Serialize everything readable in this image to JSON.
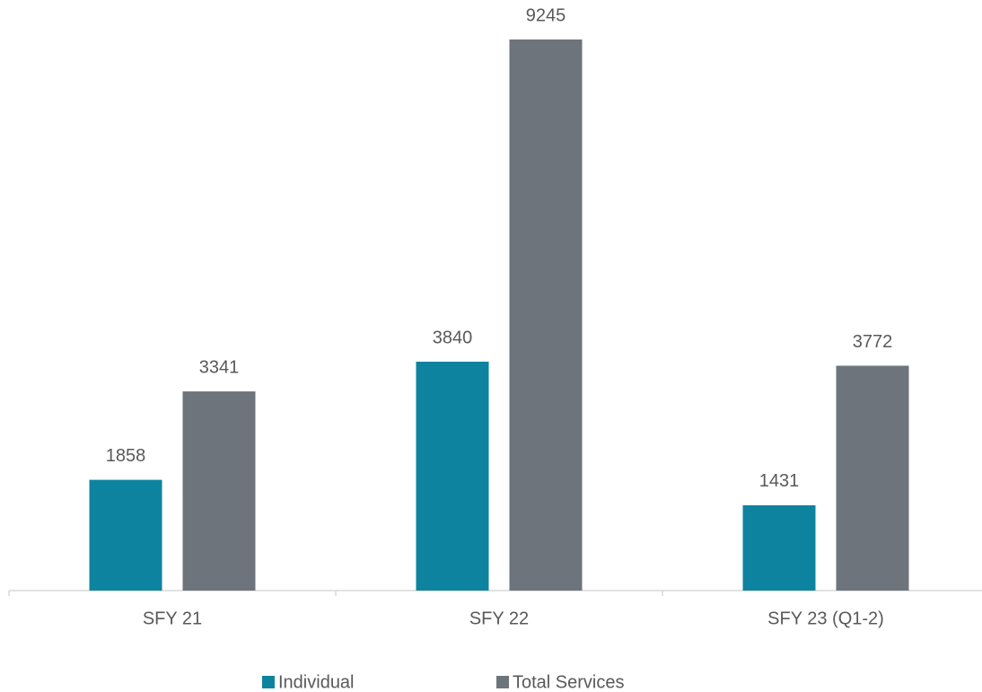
{
  "chart_data": {
    "type": "bar",
    "categories": [
      "SFY 21",
      "SFY 22",
      "SFY 23 (Q1-2)"
    ],
    "series": [
      {
        "name": "Individual",
        "color": "#0e83a0",
        "values": [
          1858,
          3840,
          1431
        ]
      },
      {
        "name": "Total Services",
        "color": "#6d747c",
        "values": [
          3341,
          9245,
          3772
        ]
      }
    ],
    "legend": "bottom"
  }
}
